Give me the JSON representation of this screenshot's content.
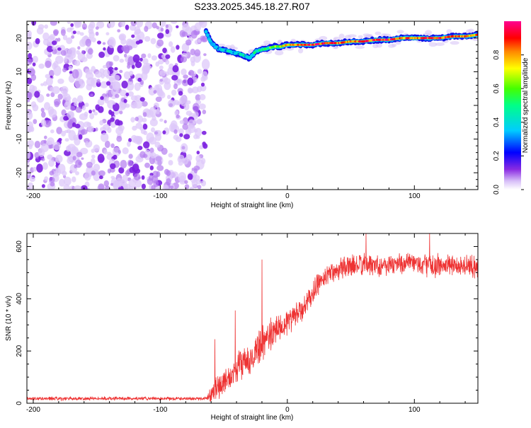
{
  "title": "S233.2025.345.18.27.R07",
  "chart_data": [
    {
      "type": "heatmap",
      "xlabel": "Height of straight line (km)",
      "ylabel": "Frequency (Hz)",
      "xlim": [
        -205,
        150
      ],
      "ylim": [
        -25,
        25
      ],
      "xticks": [
        -200,
        -100,
        0,
        100
      ],
      "yticks": [
        20,
        10,
        0,
        -10,
        -20
      ],
      "noise_region_x": [
        -205,
        -64
      ],
      "ridge": {
        "x": [
          -64,
          -60,
          -55,
          -50,
          -45,
          -40,
          -35,
          -30,
          -25,
          -20,
          -15,
          -10,
          -5,
          0,
          10,
          20,
          30,
          40,
          50,
          60,
          70,
          80,
          90,
          100,
          110,
          120,
          130,
          140,
          150
        ],
        "freq_hz": [
          22,
          18.5,
          17,
          16.5,
          16,
          15.5,
          15,
          14,
          16,
          16.5,
          17,
          17.5,
          17.5,
          18,
          18,
          18,
          18.5,
          18.5,
          19,
          19,
          19.5,
          19.5,
          20,
          20,
          20,
          20,
          20.5,
          20.5,
          21
        ],
        "amplitude": [
          0.25,
          0.3,
          0.35,
          0.35,
          0.4,
          0.35,
          0.45,
          0.3,
          0.45,
          0.5,
          0.55,
          0.6,
          0.65,
          0.75,
          0.85,
          0.9,
          0.9,
          0.85,
          0.8,
          0.85,
          0.9,
          0.9,
          0.85,
          0.8,
          0.85,
          0.9,
          0.85,
          0.8,
          0.8
        ]
      }
    },
    {
      "type": "colorbar",
      "label": "Normalized spectral amplitude",
      "range": [
        0,
        1
      ],
      "ticks": [
        "0.0",
        "0.2",
        "0.4",
        "0.6",
        "0.8"
      ]
    },
    {
      "type": "line",
      "xlabel": "Height of straight line (km)",
      "ylabel": "SNR (10 * v/v)",
      "xlim": [
        -205,
        150
      ],
      "ylim": [
        0,
        650
      ],
      "xticks": [
        -200,
        -100,
        0,
        100
      ],
      "yticks": [
        0,
        200,
        400,
        600
      ],
      "color": "#ee3333",
      "envelope": {
        "x": [
          -205,
          -64,
          -60,
          -55,
          -50,
          -45,
          -40,
          -35,
          -30,
          -25,
          -20,
          -15,
          -10,
          -5,
          0,
          5,
          10,
          15,
          20,
          25,
          30,
          40,
          50,
          60,
          70,
          80,
          90,
          100,
          110,
          120,
          130,
          140,
          150
        ],
        "mean": [
          18,
          18,
          40,
          60,
          80,
          100,
          130,
          160,
          150,
          200,
          230,
          250,
          280,
          300,
          310,
          330,
          350,
          380,
          420,
          460,
          490,
          515,
          525,
          530,
          530,
          530,
          535,
          535,
          530,
          525,
          530,
          525,
          520
        ],
        "noise": [
          8,
          8,
          40,
          60,
          60,
          60,
          60,
          70,
          60,
          80,
          80,
          80,
          70,
          70,
          60,
          60,
          60,
          50,
          50,
          50,
          50,
          50,
          50,
          50,
          50,
          50,
          50,
          50,
          50,
          50,
          50,
          50,
          50
        ]
      },
      "spikes": [
        {
          "x": -57,
          "y": 245
        },
        {
          "x": -41,
          "y": 355
        },
        {
          "x": -20,
          "y": 550
        },
        {
          "x": 62,
          "y": 650
        },
        {
          "x": 112,
          "y": 650
        }
      ]
    }
  ]
}
